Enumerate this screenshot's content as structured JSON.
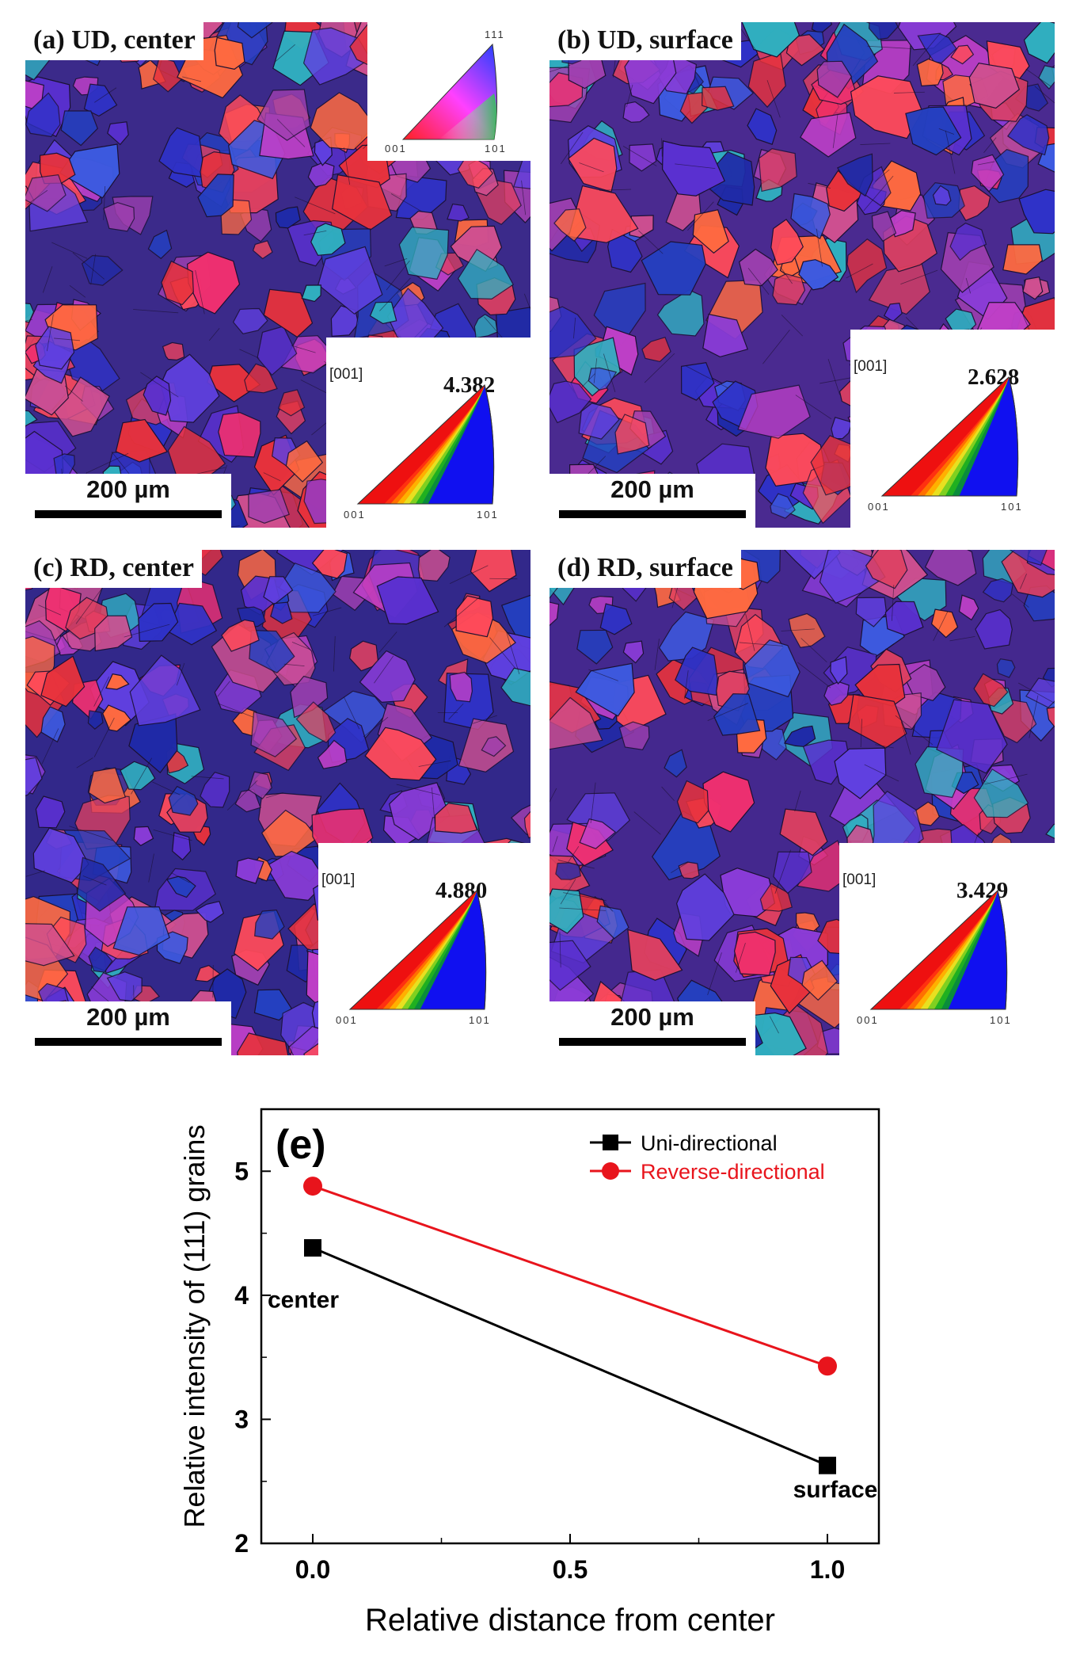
{
  "panels": [
    {
      "id": "a",
      "label": "(a) UD, center",
      "direction": "[001]",
      "max_intensity": "4.382",
      "scale_bar": "200 µm",
      "ipf_key": {
        "top": "111",
        "left": "001",
        "right": "101"
      }
    },
    {
      "id": "b",
      "label": "(b) UD, surface",
      "direction": "[001]",
      "max_intensity": "2.628",
      "scale_bar": "200 µm"
    },
    {
      "id": "c",
      "label": "(c) RD, center",
      "direction": "[001]",
      "max_intensity": "4.880",
      "scale_bar": "200 µm"
    },
    {
      "id": "d",
      "label": "(d) RD, surface",
      "direction": "[001]",
      "max_intensity": "3.429",
      "scale_bar": "200 µm"
    }
  ],
  "pole_figure_corners": {
    "left": "001",
    "right": "101"
  },
  "colors": {
    "uni": "#000000",
    "reverse": "#e8141c",
    "ipf_blue": "#0a14e6"
  },
  "chart_data": {
    "type": "line",
    "panel_label": "(e)",
    "xlabel": "Relative distance from center",
    "ylabel": "Relative intensity of (111) grains",
    "xlim": [
      -0.1,
      1.1
    ],
    "ylim": [
      2,
      5.5
    ],
    "xticks": [
      "0.0",
      "0.5",
      "1.0"
    ],
    "yticks": [
      "2",
      "3",
      "4",
      "5"
    ],
    "series": [
      {
        "name": "Uni-directional",
        "color": "#000000",
        "marker": "square",
        "x": [
          0.0,
          1.0
        ],
        "y": [
          4.382,
          2.628
        ]
      },
      {
        "name": "Reverse-directional",
        "color": "#e8141c",
        "marker": "circle",
        "x": [
          0.0,
          1.0
        ],
        "y": [
          4.88,
          3.429
        ]
      }
    ],
    "annotations": [
      {
        "text": "center",
        "x": 0.0,
        "y": 3.9
      },
      {
        "text": "surface",
        "x": 1.0,
        "y": 2.6
      }
    ]
  }
}
